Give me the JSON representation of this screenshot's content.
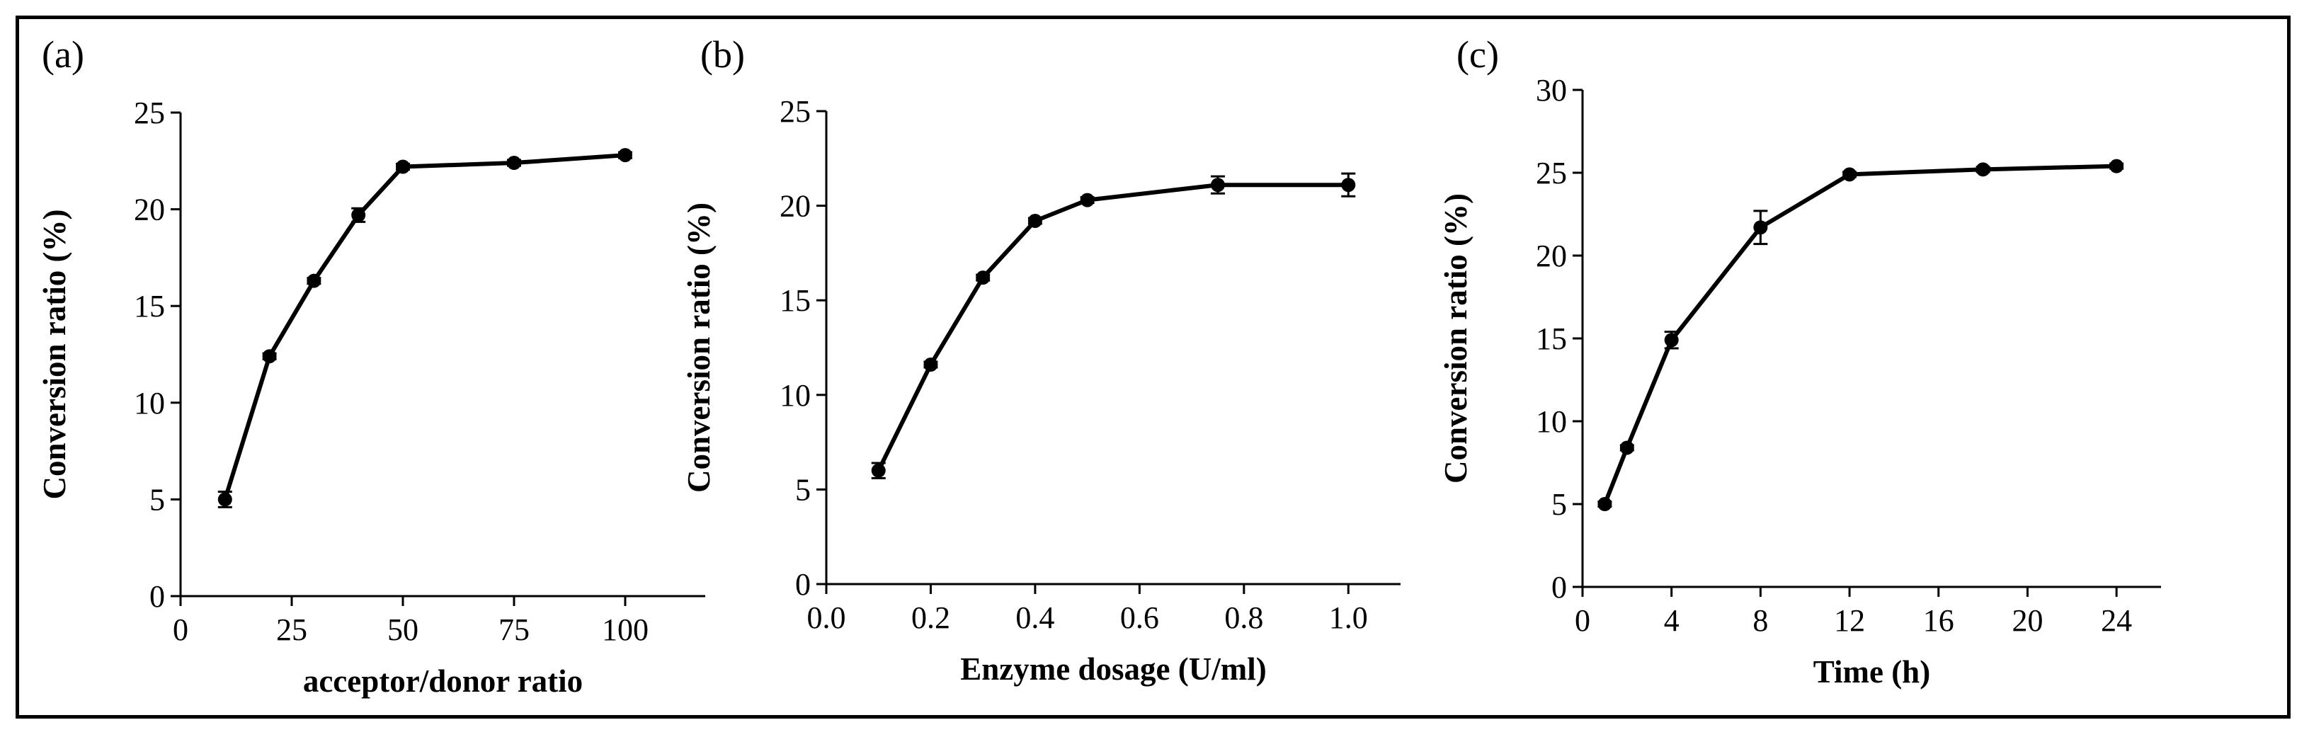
{
  "chart_data": [
    {
      "type": "line",
      "panel_label": "(a)",
      "xlabel": "acceptor/donor ratio",
      "ylabel": "Conversion ratio (%)",
      "xlim": [
        0,
        118
      ],
      "ylim": [
        0,
        25
      ],
      "xticks": [
        0,
        25,
        50,
        75,
        100
      ],
      "yticks": [
        0,
        5,
        10,
        15,
        20,
        25
      ],
      "grid": false,
      "legend": "none",
      "series": [
        {
          "x": [
            10,
            20,
            30,
            40,
            50,
            75,
            100
          ],
          "y": [
            5.0,
            12.4,
            16.3,
            19.7,
            22.2,
            22.4,
            22.8
          ],
          "error": [
            0.4,
            0.15,
            0.15,
            0.35,
            0.15,
            0.15,
            0.15
          ]
        }
      ]
    },
    {
      "type": "line",
      "panel_label": "(b)",
      "xlabel": "Enzyme dosage (U/ml)",
      "ylabel": "Conversion ratio (%)",
      "xlim": [
        0,
        1.1
      ],
      "ylim": [
        0,
        25
      ],
      "xticks": [
        0.0,
        0.2,
        0.4,
        0.6,
        0.8,
        1.0
      ],
      "xtick_labels": [
        "0.0",
        "0.2",
        "0.4",
        "0.6",
        "0.8",
        "1.0"
      ],
      "yticks": [
        0,
        5,
        10,
        15,
        20,
        25
      ],
      "grid": false,
      "legend": "none",
      "series": [
        {
          "x": [
            0.1,
            0.2,
            0.3,
            0.4,
            0.5,
            0.75,
            1.0
          ],
          "y": [
            6.0,
            11.6,
            16.2,
            19.2,
            20.3,
            21.1,
            21.1
          ],
          "error": [
            0.4,
            0.15,
            0.15,
            0.15,
            0.15,
            0.45,
            0.6
          ]
        }
      ]
    },
    {
      "type": "line",
      "panel_label": "(c)",
      "xlabel": "Time (h)",
      "ylabel": "Conversion ratio (%)",
      "xlim": [
        0,
        26
      ],
      "ylim": [
        0,
        30
      ],
      "xticks": [
        0,
        4,
        8,
        12,
        16,
        20,
        24
      ],
      "yticks": [
        0,
        5,
        10,
        15,
        20,
        25,
        30
      ],
      "grid": false,
      "legend": "none",
      "series": [
        {
          "x": [
            1,
            2,
            4,
            8,
            12,
            18,
            24
          ],
          "y": [
            5.0,
            8.4,
            14.9,
            21.7,
            24.9,
            25.2,
            25.4
          ],
          "error": [
            0.15,
            0.15,
            0.5,
            1.0,
            0.15,
            0.15,
            0.15
          ]
        }
      ]
    }
  ]
}
